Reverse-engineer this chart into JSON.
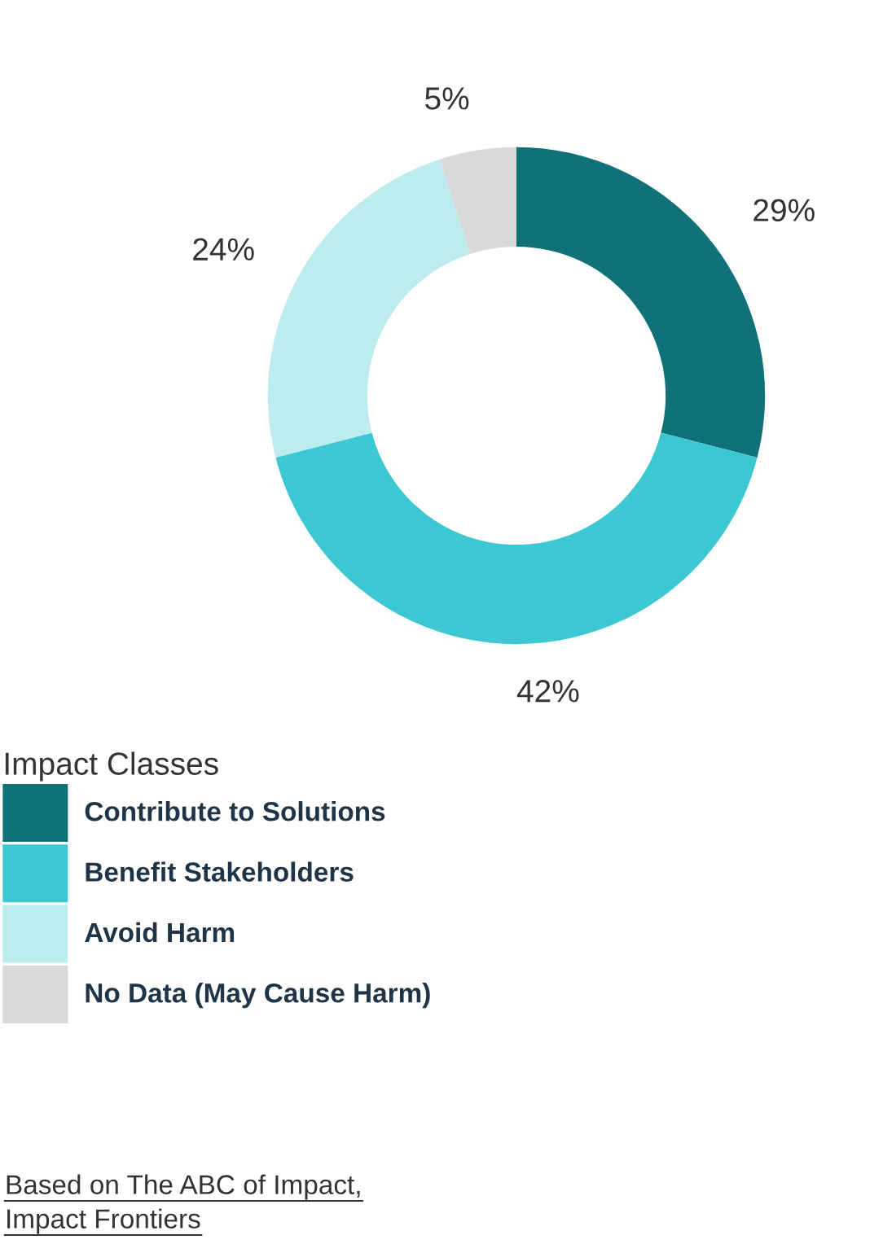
{
  "chart_data": {
    "type": "donut",
    "categories": [
      "Contribute to Solutions",
      "Benefit Stakeholders",
      "Avoid Harm",
      "No Data (May Cause Harm)"
    ],
    "values": [
      29,
      42,
      24,
      5
    ],
    "colors": [
      "#107178",
      "#3cc8d3",
      "#bdecef",
      "#d9d9d9"
    ],
    "value_labels": [
      "29%",
      "42%",
      "24%",
      "5%"
    ],
    "legend": "bottom left",
    "legend_title": "Impact Classes",
    "annotations": [
      "Based on The ABC of Impact,\nImpact Frontiers"
    ]
  }
}
